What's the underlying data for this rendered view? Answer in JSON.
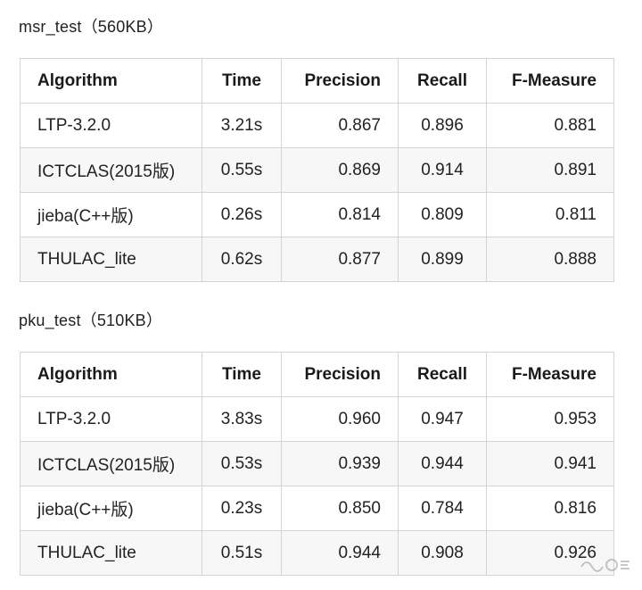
{
  "tables": [
    {
      "caption": "msr_test（560KB）",
      "headers": [
        "Algorithm",
        "Time",
        "Precision",
        "Recall",
        "F-Measure"
      ],
      "rows": [
        [
          "LTP-3.2.0",
          "3.21s",
          "0.867",
          "0.896",
          "0.881"
        ],
        [
          "ICTCLAS(2015版)",
          "0.55s",
          "0.869",
          "0.914",
          "0.891"
        ],
        [
          "jieba(C++版)",
          "0.26s",
          "0.814",
          "0.809",
          "0.811"
        ],
        [
          "THULAC_lite",
          "0.62s",
          "0.877",
          "0.899",
          "0.888"
        ]
      ]
    },
    {
      "caption": "pku_test（510KB）",
      "headers": [
        "Algorithm",
        "Time",
        "Precision",
        "Recall",
        "F-Measure"
      ],
      "rows": [
        [
          "LTP-3.2.0",
          "3.83s",
          "0.960",
          "0.947",
          "0.953"
        ],
        [
          "ICTCLAS(2015版)",
          "0.53s",
          "0.939",
          "0.944",
          "0.941"
        ],
        [
          "jieba(C++版)",
          "0.23s",
          "0.850",
          "0.784",
          "0.816"
        ],
        [
          "THULAC_lite",
          "0.51s",
          "0.944",
          "0.908",
          "0.926"
        ]
      ]
    }
  ],
  "colors": {
    "border": "#d4d4d4",
    "stripe": "#f7f7f7",
    "text": "#222222"
  },
  "icons": {
    "watermark": "watermark-logo-icon"
  }
}
